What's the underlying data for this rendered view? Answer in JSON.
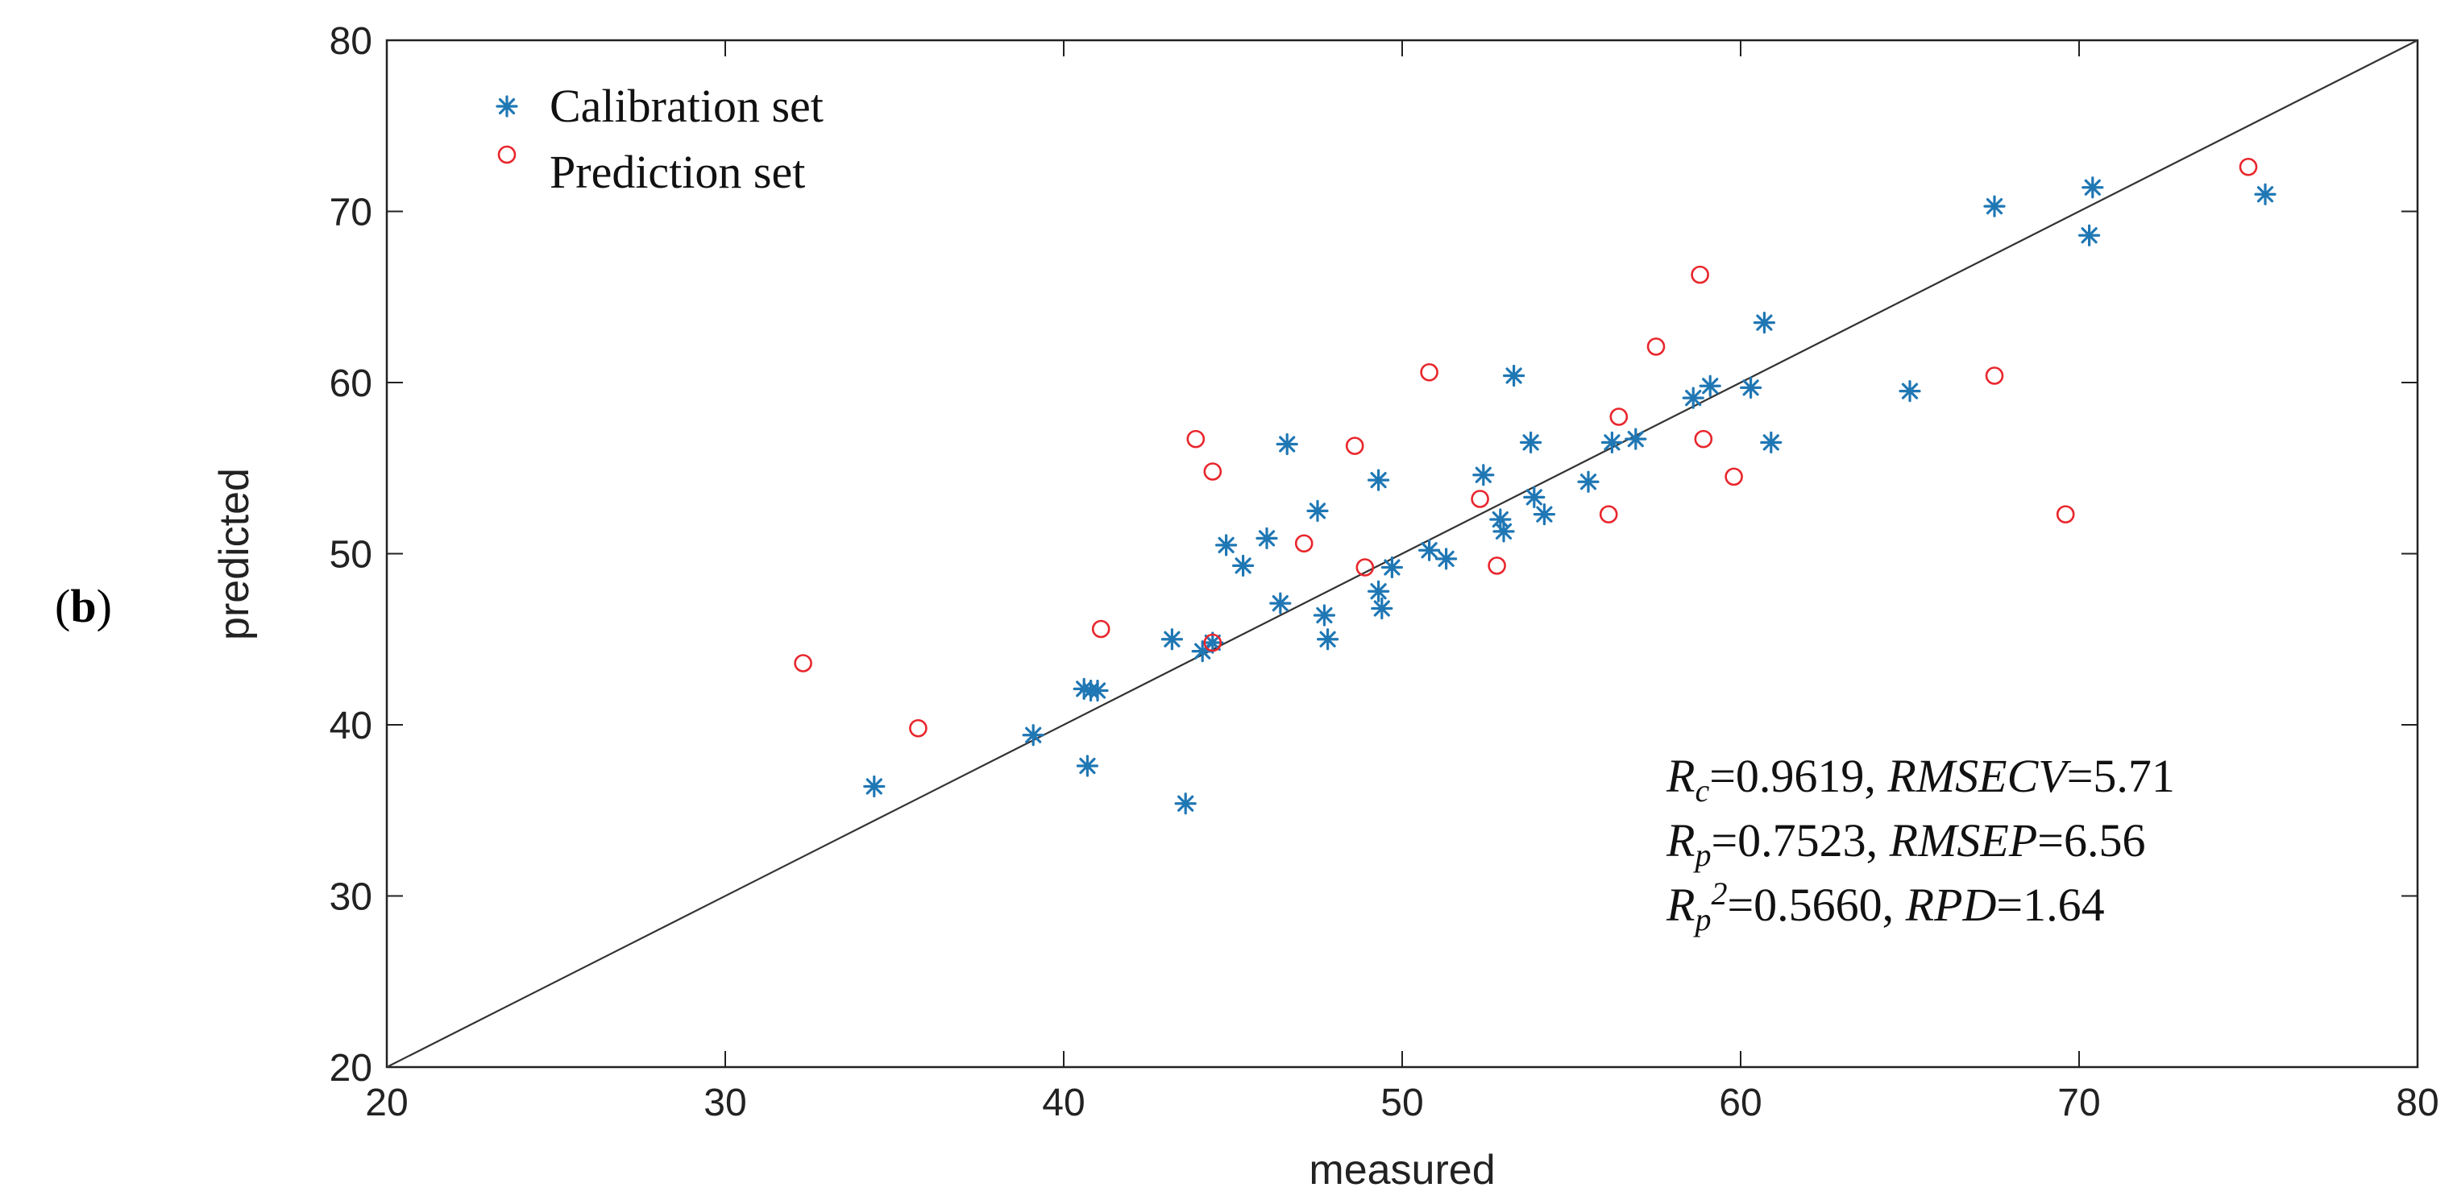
{
  "panel_label": {
    "open": "(",
    "letter": "b",
    "close": ")"
  },
  "chart_data": {
    "type": "scatter",
    "title": "",
    "xlabel": "measured",
    "ylabel": "predicted",
    "xlim": [
      20,
      80
    ],
    "ylim": [
      20,
      80
    ],
    "xticks": [
      20,
      30,
      40,
      50,
      60,
      70,
      80
    ],
    "yticks": [
      20,
      30,
      40,
      50,
      60,
      70,
      80
    ],
    "grid": false,
    "legend_position": "top-left",
    "reference_line": {
      "name": "y = x",
      "from": [
        20,
        20
      ],
      "to": [
        80,
        80
      ],
      "color": "#333333"
    },
    "series": [
      {
        "name": "Calibration set",
        "marker": "asterisk",
        "color": "#1f77b4",
        "points": [
          [
            34.4,
            36.4
          ],
          [
            39.1,
            39.4
          ],
          [
            40.6,
            42.1
          ],
          [
            40.8,
            42.0
          ],
          [
            41.0,
            42.0
          ],
          [
            40.7,
            37.6
          ],
          [
            43.2,
            45.0
          ],
          [
            43.6,
            35.4
          ],
          [
            44.1,
            44.3
          ],
          [
            44.4,
            44.8
          ],
          [
            44.8,
            50.5
          ],
          [
            45.3,
            49.3
          ],
          [
            46.0,
            50.9
          ],
          [
            46.4,
            47.1
          ],
          [
            46.6,
            56.4
          ],
          [
            47.5,
            52.5
          ],
          [
            47.7,
            46.4
          ],
          [
            47.8,
            45.0
          ],
          [
            49.3,
            54.3
          ],
          [
            49.3,
            47.8
          ],
          [
            49.4,
            46.8
          ],
          [
            49.7,
            49.2
          ],
          [
            50.8,
            50.2
          ],
          [
            51.3,
            49.7
          ],
          [
            52.4,
            54.6
          ],
          [
            52.9,
            52.0
          ],
          [
            53.0,
            51.3
          ],
          [
            53.3,
            60.4
          ],
          [
            53.8,
            56.5
          ],
          [
            53.9,
            53.3
          ],
          [
            54.2,
            52.3
          ],
          [
            55.5,
            54.2
          ],
          [
            56.2,
            56.5
          ],
          [
            56.9,
            56.7
          ],
          [
            58.6,
            59.1
          ],
          [
            59.1,
            59.8
          ],
          [
            60.3,
            59.7
          ],
          [
            60.7,
            63.5
          ],
          [
            60.9,
            56.5
          ],
          [
            65.0,
            59.5
          ],
          [
            67.5,
            70.3
          ],
          [
            70.3,
            68.6
          ],
          [
            70.4,
            71.4
          ],
          [
            75.5,
            71.0
          ]
        ]
      },
      {
        "name": "Prediction set",
        "marker": "circle",
        "color": "#e8262c",
        "points": [
          [
            32.3,
            43.6
          ],
          [
            35.7,
            39.8
          ],
          [
            41.1,
            45.6
          ],
          [
            43.9,
            56.7
          ],
          [
            44.4,
            44.8
          ],
          [
            44.4,
            54.8
          ],
          [
            47.1,
            50.6
          ],
          [
            48.6,
            56.3
          ],
          [
            48.9,
            49.2
          ],
          [
            50.8,
            60.6
          ],
          [
            52.3,
            53.2
          ],
          [
            52.8,
            49.3
          ],
          [
            56.1,
            52.3
          ],
          [
            56.4,
            58.0
          ],
          [
            57.5,
            62.1
          ],
          [
            58.8,
            66.3
          ],
          [
            58.9,
            56.7
          ],
          [
            59.8,
            54.5
          ],
          [
            67.5,
            60.4
          ],
          [
            69.6,
            52.3
          ],
          [
            75.0,
            72.6
          ]
        ]
      }
    ],
    "annotation": {
      "line1": {
        "r_main": "R",
        "r_sub": "c",
        "r_val": "=0.9619, ",
        "m_name": "RMSECV",
        "m_val": "=5.71"
      },
      "line2": {
        "r_main": "R",
        "r_sub": "p",
        "r_val": "=0.7523, ",
        "m_name": "RMSEP",
        "m_val": "=6.56"
      },
      "line3": {
        "r_main": "R",
        "r_sub": "p",
        "r_sup": "2",
        "r_val": "=0.5660, ",
        "m_name": "RPD",
        "m_val": "=1.64"
      }
    }
  }
}
